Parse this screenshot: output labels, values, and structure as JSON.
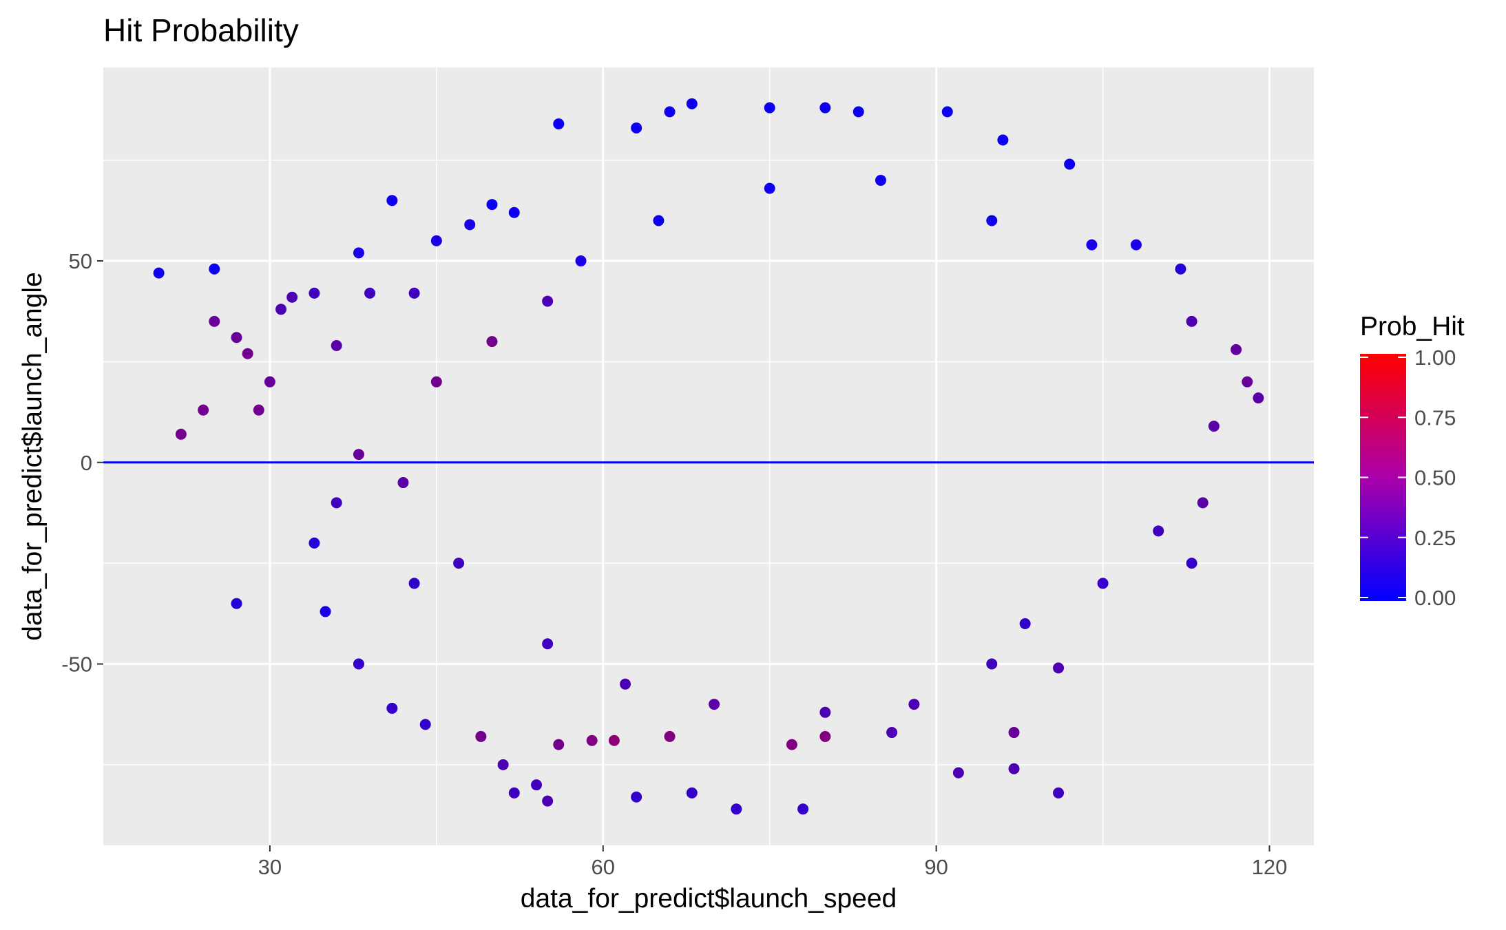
{
  "chart_data": {
    "type": "scatter",
    "title": "Hit Probability",
    "xlabel": "data_for_predict$launch_speed",
    "ylabel": "data_for_predict$launch_angle",
    "xlim": [
      15,
      124
    ],
    "ylim": [
      -95,
      98
    ],
    "x_ticks": [
      30,
      60,
      90,
      120
    ],
    "y_ticks": [
      -50,
      0,
      50
    ],
    "x_tick_labels": [
      "30",
      "60",
      "90",
      "120"
    ],
    "y_tick_labels": [
      "-50",
      "0",
      "50"
    ],
    "grid": true,
    "reference_line": {
      "y": 0,
      "color": "#0000ff"
    },
    "color_scale": {
      "title": "Prob_Hit",
      "low_color": "#0000ff",
      "high_color": "#ff0000",
      "range": [
        0,
        1
      ],
      "ticks": [
        0.0,
        0.25,
        0.5,
        0.75,
        1.0
      ],
      "tick_labels": [
        "0.00",
        "0.25",
        "0.50",
        "0.75",
        "1.00"
      ],
      "position": "right"
    },
    "points": [
      [
        20,
        47,
        0.05
      ],
      [
        25,
        48,
        0.05
      ],
      [
        22,
        7,
        0.45
      ],
      [
        24,
        13,
        0.45
      ],
      [
        25,
        35,
        0.4
      ],
      [
        27,
        31,
        0.4
      ],
      [
        28,
        27,
        0.45
      ],
      [
        29,
        13,
        0.45
      ],
      [
        30,
        20,
        0.4
      ],
      [
        31,
        38,
        0.3
      ],
      [
        32,
        41,
        0.3
      ],
      [
        34,
        42,
        0.25
      ],
      [
        36,
        29,
        0.35
      ],
      [
        38,
        52,
        0.1
      ],
      [
        39,
        42,
        0.25
      ],
      [
        41,
        65,
        0.05
      ],
      [
        43,
        42,
        0.25
      ],
      [
        45,
        55,
        0.1
      ],
      [
        48,
        59,
        0.1
      ],
      [
        50,
        64,
        0.05
      ],
      [
        52,
        62,
        0.05
      ],
      [
        27,
        -35,
        0.15
      ],
      [
        34,
        -20,
        0.15
      ],
      [
        35,
        -37,
        0.1
      ],
      [
        36,
        -10,
        0.25
      ],
      [
        38,
        -50,
        0.2
      ],
      [
        41,
        -61,
        0.2
      ],
      [
        43,
        -30,
        0.2
      ],
      [
        44,
        -65,
        0.2
      ],
      [
        49,
        -68,
        0.45
      ],
      [
        51,
        -75,
        0.3
      ],
      [
        52,
        -82,
        0.25
      ],
      [
        54,
        -80,
        0.25
      ],
      [
        55,
        -84,
        0.3
      ],
      [
        56,
        -70,
        0.45
      ],
      [
        59,
        -69,
        0.5
      ],
      [
        61,
        -69,
        0.55
      ],
      [
        63,
        -83,
        0.2
      ],
      [
        66,
        -68,
        0.5
      ],
      [
        68,
        -82,
        0.2
      ],
      [
        72,
        -86,
        0.2
      ],
      [
        78,
        -86,
        0.2
      ],
      [
        77,
        -70,
        0.5
      ],
      [
        80,
        -68,
        0.5
      ],
      [
        86,
        -67,
        0.3
      ],
      [
        92,
        -77,
        0.3
      ],
      [
        97,
        -76,
        0.3
      ],
      [
        101,
        -82,
        0.25
      ],
      [
        97,
        -67,
        0.4
      ],
      [
        101,
        -51,
        0.3
      ],
      [
        56,
        84,
        0.05
      ],
      [
        63,
        83,
        0.05
      ],
      [
        66,
        87,
        0.05
      ],
      [
        68,
        89,
        0.05
      ],
      [
        75,
        88,
        0.05
      ],
      [
        80,
        88,
        0.05
      ],
      [
        83,
        87,
        0.05
      ],
      [
        91,
        87,
        0.05
      ],
      [
        96,
        80,
        0.05
      ],
      [
        102,
        74,
        0.05
      ],
      [
        104,
        54,
        0.1
      ],
      [
        108,
        54,
        0.1
      ],
      [
        112,
        48,
        0.15
      ],
      [
        113,
        35,
        0.3
      ],
      [
        117,
        28,
        0.4
      ],
      [
        118,
        20,
        0.4
      ],
      [
        119,
        16,
        0.35
      ],
      [
        115,
        9,
        0.35
      ],
      [
        114,
        -10,
        0.35
      ],
      [
        113,
        -25,
        0.2
      ],
      [
        110,
        -17,
        0.25
      ],
      [
        105,
        -30,
        0.2
      ],
      [
        98,
        -40,
        0.2
      ],
      [
        95,
        -50,
        0.25
      ],
      [
        88,
        -60,
        0.3
      ],
      [
        80,
        -62,
        0.3
      ],
      [
        70,
        -60,
        0.35
      ],
      [
        62,
        -55,
        0.3
      ],
      [
        55,
        -45,
        0.25
      ],
      [
        47,
        -25,
        0.25
      ],
      [
        42,
        -5,
        0.35
      ],
      [
        38,
        2,
        0.4
      ],
      [
        45,
        20,
        0.45
      ],
      [
        50,
        30,
        0.45
      ],
      [
        55,
        40,
        0.3
      ],
      [
        58,
        50,
        0.1
      ],
      [
        65,
        60,
        0.05
      ],
      [
        75,
        68,
        0.05
      ],
      [
        85,
        70,
        0.05
      ],
      [
        95,
        60,
        0.08
      ]
    ]
  }
}
